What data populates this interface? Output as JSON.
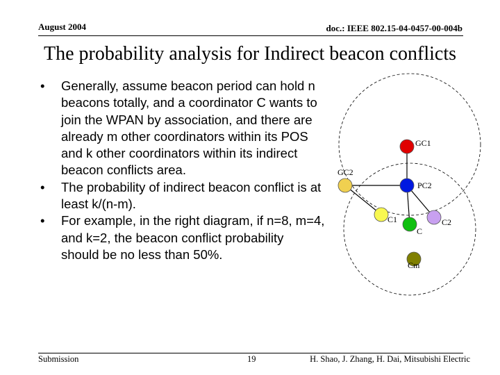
{
  "header": {
    "date": "August 2004",
    "doc_id": "doc.: IEEE 802.15-04-0457-00-004b"
  },
  "title": "The probability analysis for Indirect beacon conflicts",
  "bullets": [
    "Generally, assume beacon period can hold n beacons totally, and a coordinator C wants to join the WPAN by association, and there are already m other coordinators within its POS and k other coordinators within its indirect beacon conflicts area.",
    "The probability of indirect beacon conflict is at least k/(n-m).",
    "For example, in the right diagram, if n=8, m=4, and k=2, the beacon conflict probability should be no less than 50%."
  ],
  "bullet_marker": "•",
  "diagram": {
    "nodes": {
      "gc1": {
        "label": "GC1",
        "color": "#e00000"
      },
      "gc2": {
        "label": "GC2",
        "color": "#f0d050"
      },
      "pc2": {
        "label": "PC2",
        "color": "#0018e0"
      },
      "c1": {
        "label": "C1",
        "color": "#f8f850"
      },
      "c": {
        "label": "C",
        "color": "#10c010"
      },
      "c2": {
        "label": "C2",
        "color": "#c8a0f0"
      },
      "cm": {
        "label": "Cm",
        "color": "#808000"
      }
    }
  },
  "footer": {
    "left": "Submission",
    "page": "19",
    "authors": "H. Shao, J. Zhang, H. Dai, Mitsubishi Electric"
  }
}
